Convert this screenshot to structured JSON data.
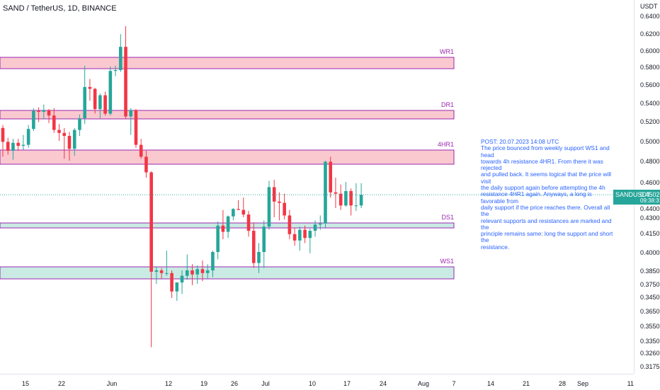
{
  "header": {
    "title": "SAND / TetherUS, 1D, BINANCE"
  },
  "price_axis": {
    "unit": "USDT",
    "ticks": [
      "0.6400",
      "0.6200",
      "0.6000",
      "0.5800",
      "0.5600",
      "0.5400",
      "0.5200",
      "0.5000",
      "0.4800",
      "0.4600",
      "0.4400",
      "0.4300",
      "0.4150",
      "0.4000",
      "0.3850",
      "0.3750",
      "0.3650",
      "0.3550",
      "0.3450",
      "0.3350",
      "0.3260",
      "0.3175"
    ]
  },
  "time_axis": {
    "ticks": [
      "15",
      "22",
      "Jun",
      "12",
      "19",
      "26",
      "Jul",
      "10",
      "17",
      "24",
      "Aug",
      "7",
      "14",
      "21",
      "28",
      "Sep",
      "11"
    ]
  },
  "last_price": {
    "symbol": "SANDUSDT",
    "price": "0.4502",
    "countdown": "09:38:31",
    "color": "#26a69a"
  },
  "zones": [
    {
      "label": "WR1",
      "kind": "resistance",
      "color": "#f9c9cf",
      "border": "#9c27b0"
    },
    {
      "label": "DR1",
      "kind": "resistance",
      "color": "#f9c9cf",
      "border": "#9c27b0"
    },
    {
      "label": "4HR1",
      "kind": "resistance",
      "color": "#f9c9cf",
      "border": "#9c27b0"
    },
    {
      "label": "DS1",
      "kind": "support",
      "color": "#c9ebe3",
      "border": "#9c27b0"
    },
    {
      "label": "WS1",
      "kind": "support",
      "color": "#c9ebe3",
      "border": "#9c27b0"
    }
  ],
  "post": {
    "lines": [
      "POST: 20.07.2023 14:08 UTC",
      "The price bounced from weekly support WS1 and head",
      "towards 4h resistance 4HR1. From there it was rejected",
      "and pulled back. It seems logical that the price will visit",
      "the daily support again before attempting the 4h",
      "resistance 4HR1 again. Anyways, a long is favorable from",
      "daily support if the price reaches there. Overall all the",
      "relevant supports and resistances are marked and the",
      "principle remains same: long the support and short the",
      "resistance."
    ],
    "color": "#2962ff"
  },
  "colors": {
    "up": "#26a69a",
    "down": "#f23645"
  },
  "chart_data": {
    "type": "candlestick",
    "symbol": "SANDUSDT",
    "candles": [
      {
        "o": 0.513,
        "h": 0.516,
        "l": 0.484,
        "c": 0.499
      },
      {
        "o": 0.499,
        "h": 0.503,
        "l": 0.486,
        "c": 0.49
      },
      {
        "o": 0.49,
        "h": 0.502,
        "l": 0.481,
        "c": 0.498
      },
      {
        "o": 0.498,
        "h": 0.502,
        "l": 0.49,
        "c": 0.495
      },
      {
        "o": 0.495,
        "h": 0.506,
        "l": 0.491,
        "c": 0.496
      },
      {
        "o": 0.496,
        "h": 0.516,
        "l": 0.493,
        "c": 0.512
      },
      {
        "o": 0.512,
        "h": 0.534,
        "l": 0.51,
        "c": 0.531
      },
      {
        "o": 0.531,
        "h": 0.535,
        "l": 0.519,
        "c": 0.53
      },
      {
        "o": 0.53,
        "h": 0.538,
        "l": 0.522,
        "c": 0.532
      },
      {
        "o": 0.532,
        "h": 0.533,
        "l": 0.518,
        "c": 0.526
      },
      {
        "o": 0.526,
        "h": 0.534,
        "l": 0.508,
        "c": 0.511
      },
      {
        "o": 0.511,
        "h": 0.517,
        "l": 0.5,
        "c": 0.508
      },
      {
        "o": 0.508,
        "h": 0.513,
        "l": 0.482,
        "c": 0.505
      },
      {
        "o": 0.505,
        "h": 0.509,
        "l": 0.48,
        "c": 0.492
      },
      {
        "o": 0.492,
        "h": 0.513,
        "l": 0.485,
        "c": 0.511
      },
      {
        "o": 0.511,
        "h": 0.527,
        "l": 0.505,
        "c": 0.523
      },
      {
        "o": 0.523,
        "h": 0.581,
        "l": 0.517,
        "c": 0.557
      },
      {
        "o": 0.557,
        "h": 0.566,
        "l": 0.542,
        "c": 0.555
      },
      {
        "o": 0.555,
        "h": 0.556,
        "l": 0.528,
        "c": 0.533
      },
      {
        "o": 0.533,
        "h": 0.55,
        "l": 0.523,
        "c": 0.548
      },
      {
        "o": 0.548,
        "h": 0.552,
        "l": 0.526,
        "c": 0.528
      },
      {
        "o": 0.528,
        "h": 0.58,
        "l": 0.526,
        "c": 0.575
      },
      {
        "o": 0.575,
        "h": 0.581,
        "l": 0.569,
        "c": 0.576
      },
      {
        "o": 0.576,
        "h": 0.619,
        "l": 0.574,
        "c": 0.604
      },
      {
        "o": 0.604,
        "h": 0.628,
        "l": 0.522,
        "c": 0.525
      },
      {
        "o": 0.525,
        "h": 0.534,
        "l": 0.506,
        "c": 0.532
      },
      {
        "o": 0.532,
        "h": 0.533,
        "l": 0.493,
        "c": 0.496
      },
      {
        "o": 0.496,
        "h": 0.502,
        "l": 0.482,
        "c": 0.484
      },
      {
        "o": 0.484,
        "h": 0.49,
        "l": 0.464,
        "c": 0.469
      },
      {
        "o": 0.469,
        "h": 0.47,
        "l": 0.33,
        "c": 0.384
      },
      {
        "o": 0.384,
        "h": 0.388,
        "l": 0.375,
        "c": 0.385
      },
      {
        "o": 0.385,
        "h": 0.387,
        "l": 0.379,
        "c": 0.383
      },
      {
        "o": 0.383,
        "h": 0.401,
        "l": 0.381,
        "c": 0.383
      },
      {
        "o": 0.383,
        "h": 0.385,
        "l": 0.364,
        "c": 0.369
      },
      {
        "o": 0.369,
        "h": 0.376,
        "l": 0.362,
        "c": 0.376
      },
      {
        "o": 0.376,
        "h": 0.385,
        "l": 0.367,
        "c": 0.381
      },
      {
        "o": 0.381,
        "h": 0.398,
        "l": 0.378,
        "c": 0.385
      },
      {
        "o": 0.385,
        "h": 0.39,
        "l": 0.374,
        "c": 0.382
      },
      {
        "o": 0.382,
        "h": 0.389,
        "l": 0.375,
        "c": 0.386
      },
      {
        "o": 0.386,
        "h": 0.393,
        "l": 0.377,
        "c": 0.383
      },
      {
        "o": 0.383,
        "h": 0.39,
        "l": 0.379,
        "c": 0.385
      },
      {
        "o": 0.385,
        "h": 0.401,
        "l": 0.38,
        "c": 0.4
      },
      {
        "o": 0.4,
        "h": 0.426,
        "l": 0.394,
        "c": 0.422
      },
      {
        "o": 0.422,
        "h": 0.438,
        "l": 0.41,
        "c": 0.416
      },
      {
        "o": 0.416,
        "h": 0.432,
        "l": 0.411,
        "c": 0.431
      },
      {
        "o": 0.431,
        "h": 0.44,
        "l": 0.427,
        "c": 0.439
      },
      {
        "o": 0.439,
        "h": 0.446,
        "l": 0.438,
        "c": 0.438
      },
      {
        "o": 0.438,
        "h": 0.448,
        "l": 0.43,
        "c": 0.433
      },
      {
        "o": 0.433,
        "h": 0.437,
        "l": 0.412,
        "c": 0.417
      },
      {
        "o": 0.417,
        "h": 0.425,
        "l": 0.387,
        "c": 0.391
      },
      {
        "o": 0.391,
        "h": 0.407,
        "l": 0.383,
        "c": 0.4
      },
      {
        "o": 0.4,
        "h": 0.427,
        "l": 0.387,
        "c": 0.421
      },
      {
        "o": 0.421,
        "h": 0.461,
        "l": 0.418,
        "c": 0.456
      },
      {
        "o": 0.456,
        "h": 0.462,
        "l": 0.43,
        "c": 0.445
      },
      {
        "o": 0.445,
        "h": 0.452,
        "l": 0.427,
        "c": 0.444
      },
      {
        "o": 0.444,
        "h": 0.451,
        "l": 0.428,
        "c": 0.432
      },
      {
        "o": 0.432,
        "h": 0.438,
        "l": 0.41,
        "c": 0.414
      },
      {
        "o": 0.414,
        "h": 0.42,
        "l": 0.405,
        "c": 0.409
      },
      {
        "o": 0.409,
        "h": 0.421,
        "l": 0.401,
        "c": 0.418
      },
      {
        "o": 0.418,
        "h": 0.422,
        "l": 0.407,
        "c": 0.411
      },
      {
        "o": 0.411,
        "h": 0.419,
        "l": 0.399,
        "c": 0.417
      },
      {
        "o": 0.417,
        "h": 0.427,
        "l": 0.412,
        "c": 0.423
      },
      {
        "o": 0.423,
        "h": 0.432,
        "l": 0.418,
        "c": 0.424
      },
      {
        "o": 0.424,
        "h": 0.48,
        "l": 0.42,
        "c": 0.479
      },
      {
        "o": 0.479,
        "h": 0.484,
        "l": 0.448,
        "c": 0.452
      },
      {
        "o": 0.452,
        "h": 0.464,
        "l": 0.44,
        "c": 0.451
      },
      {
        "o": 0.451,
        "h": 0.458,
        "l": 0.438,
        "c": 0.442
      },
      {
        "o": 0.442,
        "h": 0.46,
        "l": 0.441,
        "c": 0.453
      },
      {
        "o": 0.453,
        "h": 0.455,
        "l": 0.432,
        "c": 0.442
      },
      {
        "o": 0.442,
        "h": 0.459,
        "l": 0.437,
        "c": 0.442
      },
      {
        "o": 0.442,
        "h": 0.459,
        "l": 0.44,
        "c": 0.4502
      }
    ]
  }
}
